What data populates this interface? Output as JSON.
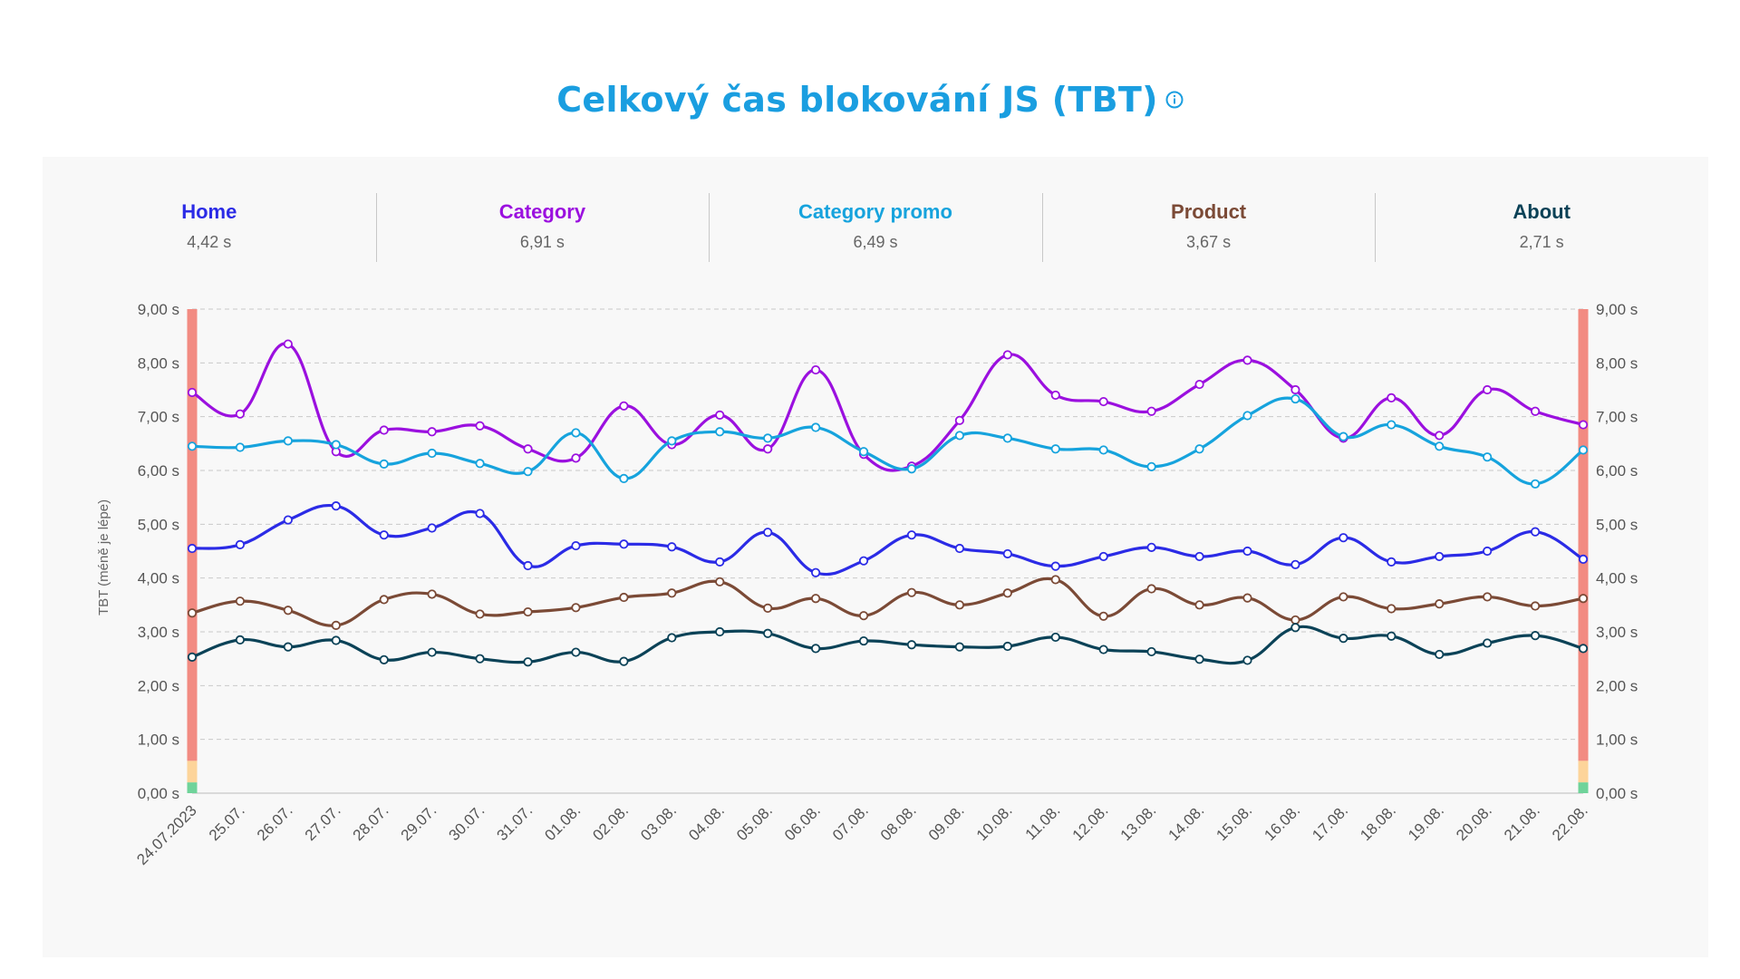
{
  "title": "Celkový čas blokování JS (TBT)",
  "colors": {
    "title": "#1a9ee0",
    "band_poor": "#f28b82",
    "band_mid": "#fdd49a",
    "band_good": "#6fd39a",
    "grid": "#c9c9c9"
  },
  "legend": [
    {
      "name": "Home",
      "value": "4,42 s",
      "color": "#2b2be6"
    },
    {
      "name": "Category",
      "value": "6,91 s",
      "color": "#9b10df"
    },
    {
      "name": "Category promo",
      "value": "6,49 s",
      "color": "#16a3dd"
    },
    {
      "name": "Product",
      "value": "3,67 s",
      "color": "#7b4a36"
    },
    {
      "name": "About",
      "value": "2,71 s",
      "color": "#0b4257"
    }
  ],
  "chart_data": {
    "type": "line",
    "title": "Celkový čas blokování JS (TBT)",
    "ylabel": "TBT (méně je lépe)",
    "xlabel": "",
    "ylim": [
      0,
      9
    ],
    "y_ticks": [
      "0,00 s",
      "1,00 s",
      "2,00 s",
      "3,00 s",
      "4,00 s",
      "5,00 s",
      "6,00 s",
      "7,00 s",
      "8,00 s",
      "9,00 s"
    ],
    "thresholds": {
      "good_max": 0.2,
      "mid_max": 0.6
    },
    "categories": [
      "24.07.2023",
      "25.07.",
      "26.07.",
      "27.07.",
      "28.07.",
      "29.07.",
      "30.07.",
      "31.07.",
      "01.08.",
      "02.08.",
      "03.08.",
      "04.08.",
      "05.08.",
      "06.08.",
      "07.08.",
      "08.08.",
      "09.08.",
      "10.08.",
      "11.08.",
      "12.08.",
      "13.08.",
      "14.08.",
      "15.08.",
      "16.08.",
      "17.08.",
      "18.08.",
      "19.08.",
      "20.08.",
      "21.08.",
      "22.08."
    ],
    "series": [
      {
        "name": "Home",
        "color": "#2b2be6",
        "values": [
          4.55,
          4.62,
          5.08,
          5.34,
          4.8,
          4.93,
          5.2,
          4.23,
          4.6,
          4.63,
          4.58,
          4.3,
          4.85,
          4.1,
          4.32,
          4.8,
          4.55,
          4.45,
          4.22,
          4.4,
          4.57,
          4.4,
          4.5,
          4.25,
          4.75,
          4.3,
          4.4,
          4.5,
          4.86,
          4.35
        ]
      },
      {
        "name": "Category",
        "color": "#9b10df",
        "values": [
          7.45,
          7.05,
          8.35,
          6.35,
          6.75,
          6.72,
          6.83,
          6.4,
          6.23,
          7.2,
          6.48,
          7.03,
          6.4,
          7.87,
          6.3,
          6.08,
          6.93,
          8.15,
          7.4,
          7.28,
          7.1,
          7.6,
          8.05,
          7.5,
          6.6,
          7.35,
          6.65,
          7.5,
          7.1,
          6.85
        ]
      },
      {
        "name": "Category promo",
        "color": "#16a3dd",
        "values": [
          6.45,
          6.43,
          6.55,
          6.48,
          6.12,
          6.32,
          6.13,
          5.98,
          6.7,
          5.85,
          6.55,
          6.72,
          6.6,
          6.8,
          6.35,
          6.03,
          6.65,
          6.6,
          6.4,
          6.38,
          6.07,
          6.4,
          7.02,
          7.33,
          6.63,
          6.85,
          6.45,
          6.25,
          5.75,
          6.38
        ]
      },
      {
        "name": "Product",
        "color": "#7b4a36",
        "values": [
          3.35,
          3.57,
          3.4,
          3.12,
          3.6,
          3.7,
          3.33,
          3.37,
          3.45,
          3.64,
          3.72,
          3.93,
          3.44,
          3.62,
          3.3,
          3.73,
          3.5,
          3.72,
          3.97,
          3.29,
          3.8,
          3.5,
          3.63,
          3.22,
          3.65,
          3.43,
          3.52,
          3.65,
          3.48,
          3.62
        ]
      },
      {
        "name": "About",
        "color": "#0b4257",
        "values": [
          2.53,
          2.85,
          2.72,
          2.84,
          2.48,
          2.62,
          2.5,
          2.44,
          2.62,
          2.45,
          2.89,
          3.0,
          2.97,
          2.69,
          2.83,
          2.76,
          2.72,
          2.73,
          2.9,
          2.67,
          2.63,
          2.49,
          2.47,
          3.08,
          2.88,
          2.92,
          2.58,
          2.79,
          2.93,
          2.69
        ]
      }
    ]
  }
}
